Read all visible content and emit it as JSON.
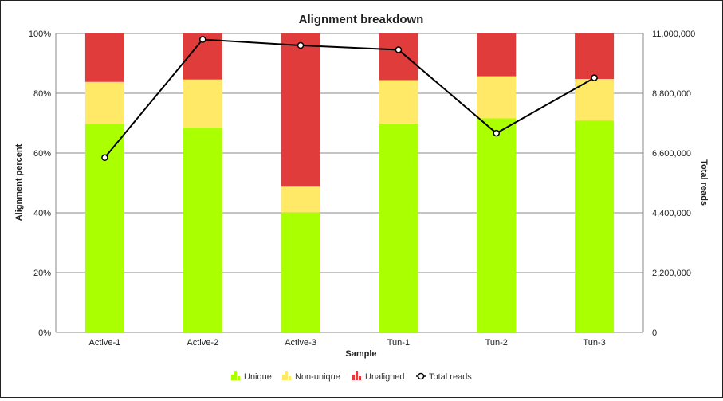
{
  "chart_data": {
    "type": "bar",
    "stacked": true,
    "title": "Alignment breakdown",
    "xlabel": "Sample",
    "ylabel": "Alignment percent",
    "y2label": "Total reads",
    "categories": [
      "Active-1",
      "Active-2",
      "Active-3",
      "Tun-1",
      "Tun-2",
      "Tun-3"
    ],
    "ylim": [
      0,
      100
    ],
    "y_ticks": [
      "0%",
      "20%",
      "40%",
      "60%",
      "80%",
      "100%"
    ],
    "y2lim": [
      0,
      11000000
    ],
    "y2_ticks": [
      "0",
      "2,200,000",
      "4,400,000",
      "6,600,000",
      "8,800,000",
      "11,000,000"
    ],
    "series": [
      {
        "name": "Unique",
        "color": "#aaff00",
        "values": [
          69.8,
          68.5,
          40.1,
          69.9,
          71.6,
          70.9
        ]
      },
      {
        "name": "Non-unique",
        "color": "#ffe966",
        "values": [
          14.0,
          16.1,
          8.9,
          14.5,
          14.1,
          13.9
        ]
      },
      {
        "name": "Unaligned",
        "color": "#e03c3c",
        "values": [
          16.2,
          15.4,
          51.0,
          15.6,
          14.3,
          15.2
        ]
      }
    ],
    "line_series": {
      "name": "Total reads",
      "axis": "right",
      "color": "#000000",
      "values": [
        6430000,
        10780000,
        10560000,
        10400000,
        7330000,
        9370000
      ]
    },
    "grid": true,
    "legend_position": "bottom"
  }
}
